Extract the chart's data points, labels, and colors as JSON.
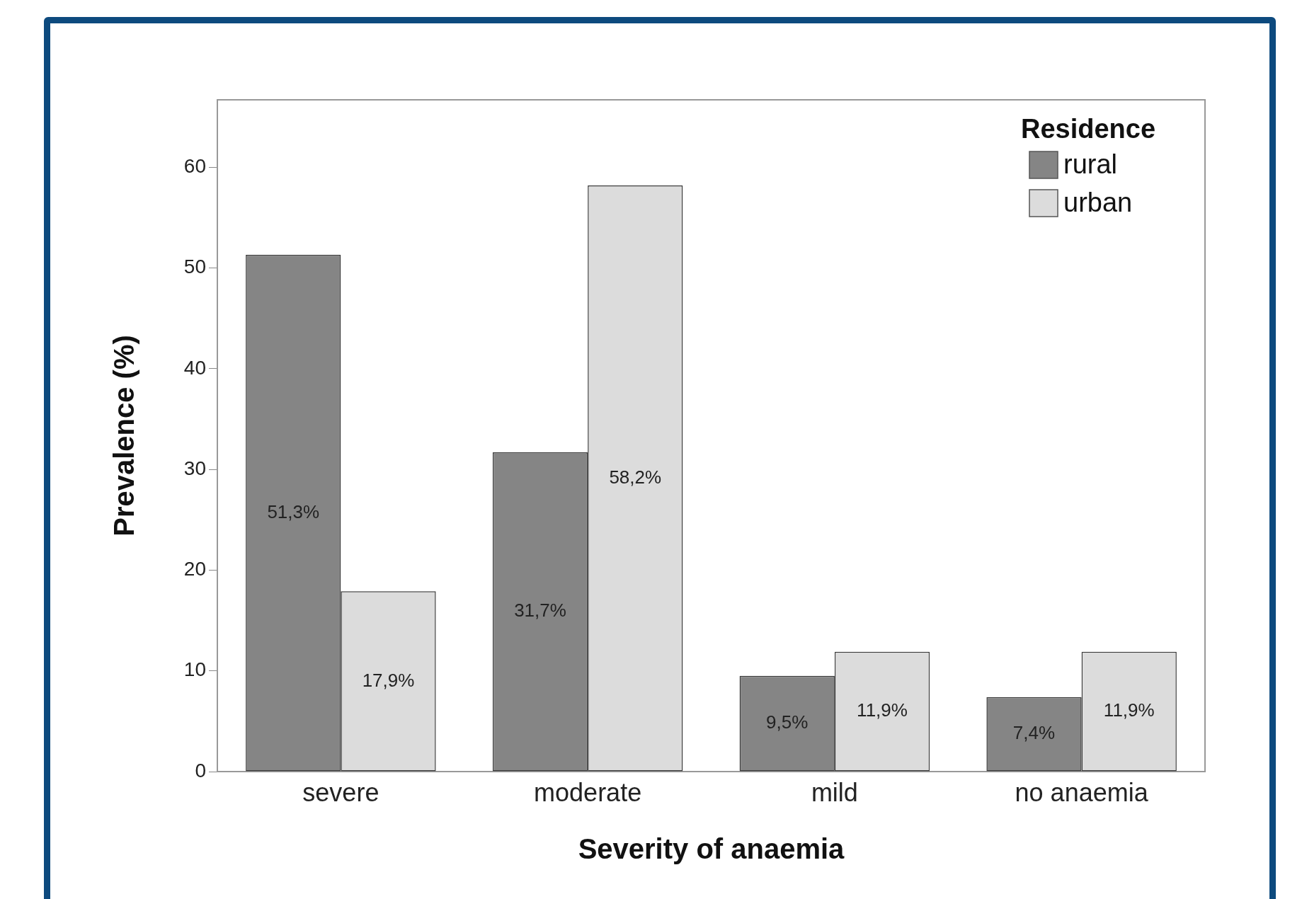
{
  "chart_data": {
    "type": "bar",
    "xlabel": "Severity of anaemia",
    "ylabel": "Prevalence (%)",
    "legend_title": "Residence",
    "legend": "top right",
    "grid": false,
    "categories": [
      "severe",
      "moderate",
      "mild",
      "no anaemia"
    ],
    "series": [
      {
        "name": "rural",
        "color": "#858585",
        "values": [
          51.3,
          31.7,
          9.5,
          7.4
        ],
        "value_labels": [
          "51,3%",
          "31,7%",
          "9,5%",
          "7,4%"
        ]
      },
      {
        "name": "urban",
        "color": "#dcdcdc",
        "values": [
          17.9,
          58.2,
          11.9,
          11.9
        ],
        "value_labels": [
          "17,9%",
          "58,2%",
          "11,9%",
          "11,9%"
        ]
      }
    ],
    "ylim": [
      0,
      66.7
    ],
    "yticks": [
      0,
      10,
      20,
      30,
      40,
      50,
      60
    ]
  }
}
